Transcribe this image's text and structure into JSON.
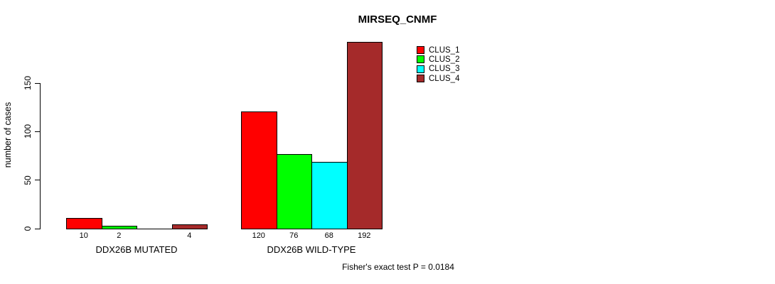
{
  "chart_data": {
    "type": "bar",
    "title": "MIRSEQ_CNMF",
    "ylabel": "number of cases",
    "xlabel": "",
    "annotation": "Fisher's exact test P = 0.0184",
    "categories": [
      "DDX26B MUTATED",
      "DDX26B WILD-TYPE"
    ],
    "series": [
      {
        "name": "CLUS_1",
        "color": "#ff0000",
        "values": [
          10,
          120
        ]
      },
      {
        "name": "CLUS_2",
        "color": "#00ff00",
        "values": [
          2,
          76
        ]
      },
      {
        "name": "CLUS_3",
        "color": "#00ffff",
        "values": [
          0,
          68
        ]
      },
      {
        "name": "CLUS_4",
        "color": "#a52a2a",
        "values": [
          4,
          192
        ]
      }
    ],
    "bar_value_labels": [
      [
        "10",
        "2",
        "",
        "4"
      ],
      [
        "120",
        "76",
        "68",
        "192"
      ]
    ],
    "yticks": [
      0,
      50,
      100,
      150
    ],
    "ylim": [
      0,
      150
    ],
    "grid": false,
    "legend_position": "top-right"
  },
  "colors": {
    "background": "#ffffff",
    "axis": "#000000",
    "text": "#000000",
    "bar_border": "#000000"
  }
}
